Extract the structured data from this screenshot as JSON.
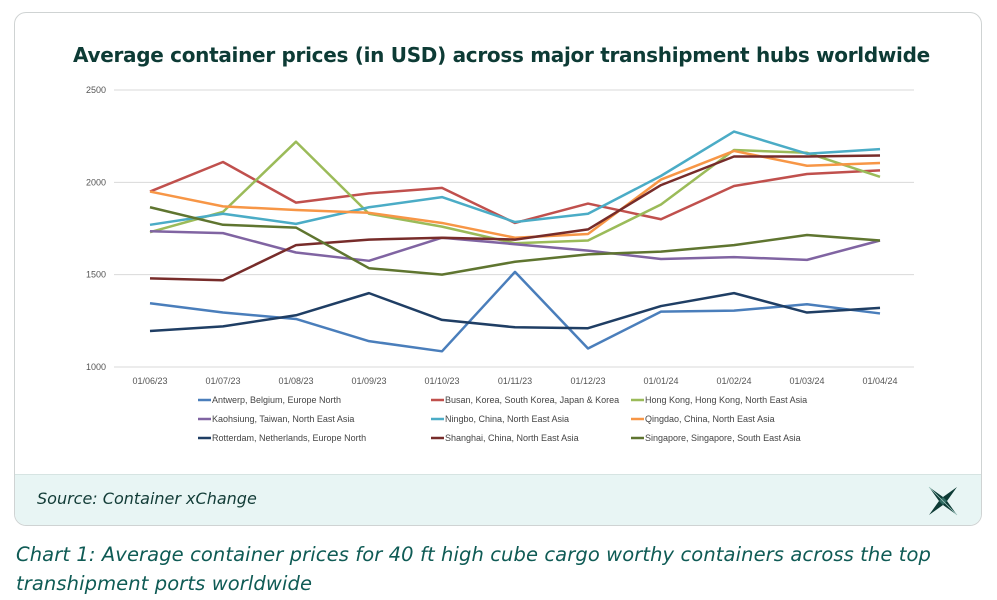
{
  "chart_data": {
    "type": "line",
    "title": "Average container prices (in USD) across major transhipment hubs worldwide",
    "xlabel": "",
    "ylabel": "",
    "ylim": [
      1000,
      2500
    ],
    "yticks": [
      1000,
      1500,
      2000,
      2500
    ],
    "grid": true,
    "legend_position": "bottom",
    "categories": [
      "01/06/23",
      "01/07/23",
      "01/08/23",
      "01/09/23",
      "01/10/23",
      "01/11/23",
      "01/12/23",
      "01/01/24",
      "01/02/24",
      "01/03/24",
      "01/04/24"
    ],
    "series": [
      {
        "name": "Antwerp, Belgium, Europe North",
        "color": "#4a7ebb",
        "values": [
          1345,
          1295,
          1260,
          1140,
          1085,
          1515,
          1100,
          1300,
          1305,
          1340,
          1290
        ]
      },
      {
        "name": "Busan, Korea, South Korea, Japan & Korea",
        "color": "#c0504d",
        "values": [
          1950,
          2110,
          1890,
          1940,
          1970,
          1780,
          1885,
          1800,
          1980,
          2045,
          2065
        ]
      },
      {
        "name": "Hong Kong, Hong Kong, North East Asia",
        "color": "#9bbb59",
        "values": [
          1730,
          1840,
          2220,
          1830,
          1760,
          1670,
          1685,
          1880,
          2175,
          2160,
          2030
        ]
      },
      {
        "name": "Kaohsiung, Taiwan, North East Asia",
        "color": "#8064a2",
        "values": [
          1735,
          1725,
          1620,
          1575,
          1700,
          1665,
          1630,
          1585,
          1595,
          1580,
          1685
        ]
      },
      {
        "name": "Ningbo, China, North East Asia",
        "color": "#4bacc6",
        "values": [
          1770,
          1830,
          1775,
          1865,
          1920,
          1785,
          1830,
          2035,
          2275,
          2155,
          2180
        ]
      },
      {
        "name": "Qingdao, China, North East Asia",
        "color": "#f79646",
        "values": [
          1950,
          1870,
          1850,
          1835,
          1780,
          1700,
          1720,
          2015,
          2170,
          2090,
          2105
        ]
      },
      {
        "name": "Rotterdam, Netherlands, Europe North",
        "color": "#1f3e64",
        "values": [
          1195,
          1220,
          1280,
          1400,
          1255,
          1215,
          1210,
          1330,
          1400,
          1295,
          1320
        ]
      },
      {
        "name": "Shanghai, China, North East Asia",
        "color": "#772c2a",
        "values": [
          1480,
          1470,
          1660,
          1690,
          1700,
          1690,
          1745,
          1985,
          2140,
          2140,
          2145
        ]
      },
      {
        "name": "Singapore, Singapore, South East Asia",
        "color": "#5f7530",
        "values": [
          1865,
          1770,
          1755,
          1535,
          1500,
          1570,
          1610,
          1625,
          1660,
          1715,
          1685
        ]
      }
    ]
  },
  "source": "Source: Container xChange",
  "caption": "Chart 1: Average container prices for 40 ft high cube cargo worthy containers across the top transhipment ports worldwide",
  "logo": {
    "name": "xchange-logo",
    "color": "#0d3b35"
  }
}
